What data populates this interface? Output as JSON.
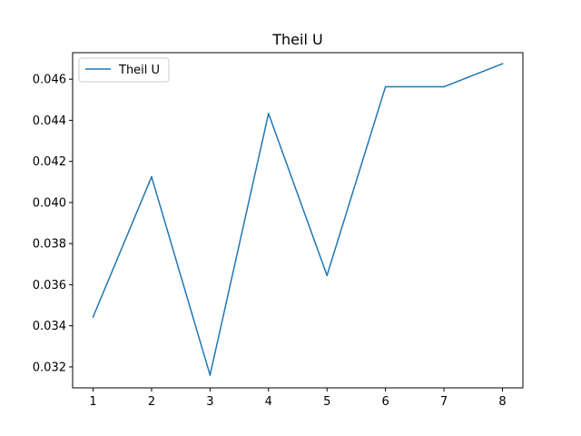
{
  "chart_data": {
    "type": "line",
    "title": "Theil U",
    "xlabel": "",
    "ylabel": "",
    "x": [
      1,
      2,
      3,
      4,
      5,
      6,
      7,
      8
    ],
    "series": [
      {
        "name": "Theil U",
        "values": [
          0.03443,
          0.04125,
          0.0316,
          0.04433,
          0.03645,
          0.04563,
          0.04563,
          0.04675
        ],
        "color": "#1f77b4"
      }
    ],
    "xlim": [
      0.65,
      8.35
    ],
    "ylim": [
      0.03098,
      0.04729
    ],
    "x_ticks": [
      "1",
      "2",
      "3",
      "4",
      "5",
      "6",
      "7",
      "8"
    ],
    "y_ticks": [
      "0.032",
      "0.034",
      "0.036",
      "0.038",
      "0.040",
      "0.042",
      "0.044",
      "0.046"
    ],
    "grid": false,
    "legend": "top-left"
  }
}
